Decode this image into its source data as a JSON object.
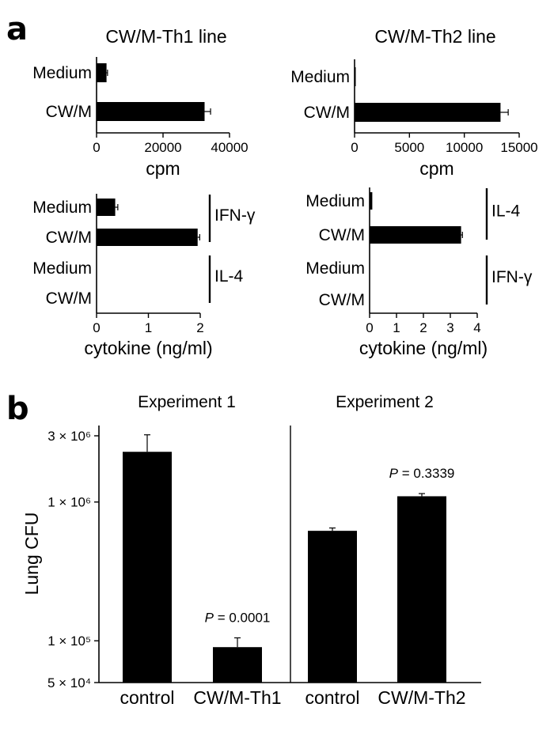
{
  "panel_labels": [
    "a",
    "b"
  ],
  "chart_data": [
    {
      "id": "th1-cpm",
      "type": "bar",
      "orientation": "horizontal",
      "title": "CW/M-Th1 line",
      "categories": [
        "Medium",
        "CW/M"
      ],
      "values": [
        3000,
        32500
      ],
      "errors": [
        300,
        1800
      ],
      "xlabel": "cpm",
      "xlim": [
        0,
        40000
      ],
      "xticks": [
        "0",
        "20000",
        "40000"
      ]
    },
    {
      "id": "th2-cpm",
      "type": "bar",
      "orientation": "horizontal",
      "title": "CW/M-Th2 line",
      "categories": [
        "Medium",
        "CW/M"
      ],
      "values": [
        80,
        13300
      ],
      "errors": [
        0,
        700
      ],
      "xlabel": "cpm",
      "xlim": [
        0,
        15000
      ],
      "xticks": [
        "0",
        "5000",
        "10000",
        "15000"
      ]
    },
    {
      "id": "th1-cytokine",
      "type": "bar",
      "orientation": "horizontal",
      "categories": [
        "Medium",
        "CW/M",
        "Medium",
        "CW/M"
      ],
      "values": [
        0.36,
        1.95,
        0,
        0
      ],
      "errors": [
        0.05,
        0.04,
        0,
        0
      ],
      "groups": [
        {
          "label": "IFN-γ",
          "rows": [
            0,
            1
          ]
        },
        {
          "label": "IL-4",
          "rows": [
            2,
            3
          ]
        }
      ],
      "xlabel": "cytokine (ng/ml)",
      "xlim": [
        0,
        2
      ],
      "xticks": [
        "0",
        "1",
        "2"
      ]
    },
    {
      "id": "th2-cytokine",
      "type": "bar",
      "orientation": "horizontal",
      "categories": [
        "Medium",
        "CW/M",
        "Medium",
        "CW/M"
      ],
      "values": [
        0.1,
        3.4,
        0,
        0
      ],
      "errors": [
        0,
        0.05,
        0,
        0
      ],
      "groups": [
        {
          "label": "IL-4",
          "rows": [
            0,
            1
          ]
        },
        {
          "label": "IFN-γ",
          "rows": [
            2,
            3
          ]
        }
      ],
      "xlabel": "cytokine (ng/ml)",
      "xlim": [
        0,
        4
      ],
      "xticks": [
        "0",
        "1",
        "2",
        "3",
        "4"
      ]
    },
    {
      "id": "lung-cfu",
      "type": "bar",
      "yscale": "log",
      "ylabel": "Lung CFU",
      "ylim": [
        50000,
        3000000
      ],
      "yticks": [
        {
          "value": 3000000,
          "label": "3 × 10⁶"
        },
        {
          "value": 1000000,
          "label": "1 × 10⁶"
        },
        {
          "value": 100000,
          "label": "1 × 10⁵"
        },
        {
          "value": 50000,
          "label": "5 × 10⁴"
        }
      ],
      "groups": [
        "Experiment 1",
        "Experiment 2"
      ],
      "categories": [
        "control",
        "CW/M-Th1",
        "control",
        "CW/M-Th2"
      ],
      "values": [
        2300000,
        90000,
        620000,
        1100000
      ],
      "error_upper": [
        3050000,
        105000,
        650000,
        1150000
      ],
      "annotations": [
        {
          "bar": 1,
          "p_label": "P",
          "p_value": "= 0.0001"
        },
        {
          "bar": 3,
          "p_label": "P",
          "p_value": "= 0.3339"
        }
      ]
    }
  ]
}
